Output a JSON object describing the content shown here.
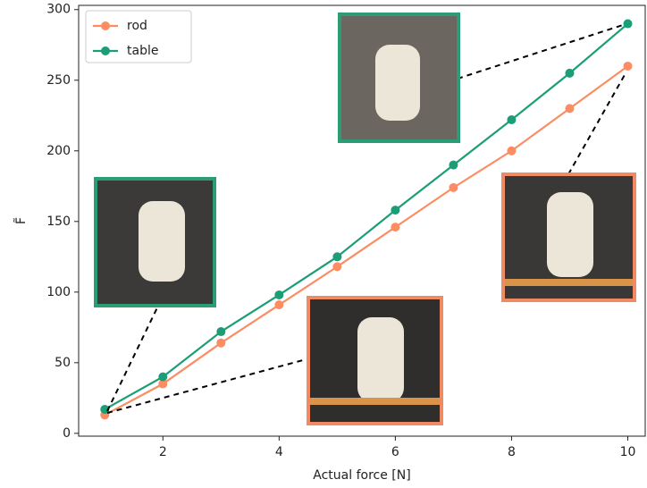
{
  "chart_data": {
    "type": "line",
    "x": [
      1,
      2,
      3,
      4,
      5,
      6,
      7,
      8,
      9,
      10
    ],
    "series": [
      {
        "name": "rod",
        "color": "#fc8d62",
        "values": [
          13,
          35,
          64,
          91,
          118,
          146,
          174,
          200,
          230,
          260
        ]
      },
      {
        "name": "table",
        "color": "#1b9e77",
        "values": [
          17,
          40,
          72,
          98,
          125,
          158,
          190,
          222,
          255,
          290
        ]
      }
    ],
    "xlabel": "Actual force [N]",
    "ylabel": "F̃",
    "xlim": [
      0.55,
      10.3
    ],
    "xticks": [
      2,
      4,
      6,
      8,
      10
    ],
    "ylim": [
      -2,
      303
    ],
    "yticks": [
      0,
      50,
      100,
      150,
      200,
      250,
      300
    ],
    "legend": "upper left"
  }
}
